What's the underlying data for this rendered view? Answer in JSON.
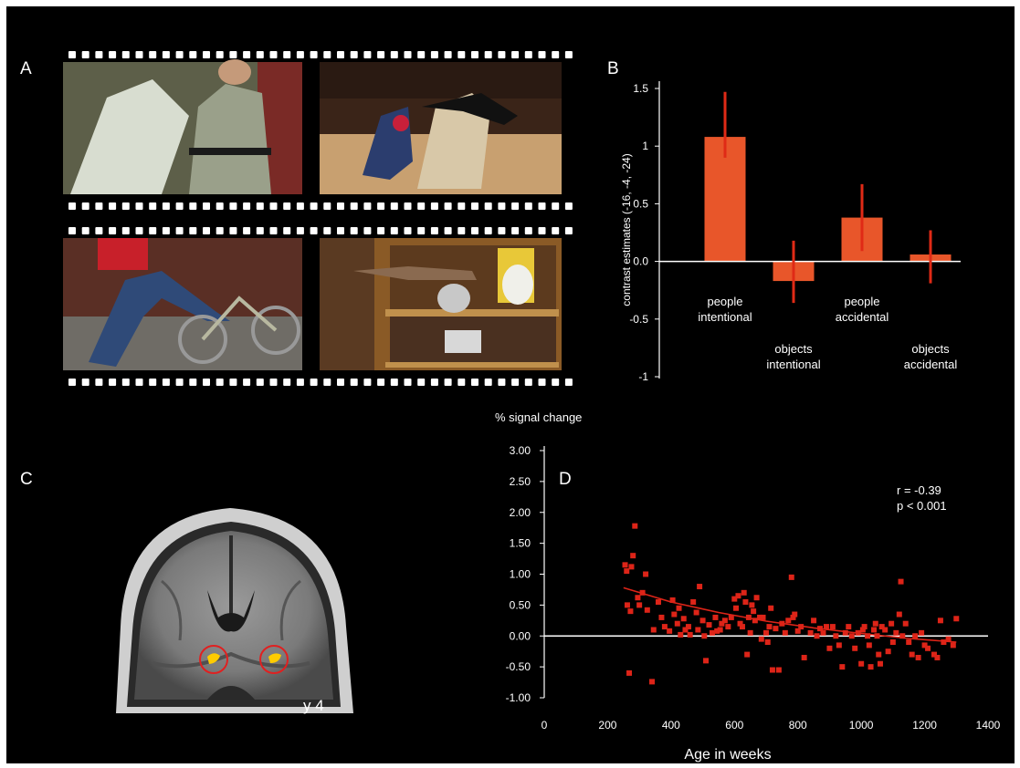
{
  "panels": {
    "a": {
      "label": "A"
    },
    "b": {
      "label": "B"
    },
    "c": {
      "label": "C",
      "slice_label": "y 4"
    },
    "d": {
      "label": "D"
    }
  },
  "colors": {
    "accent": "#e03a1e",
    "bar_fill": "#e8562a",
    "error_bar": "#e02a16",
    "scatter": "#dd2418",
    "background": "#000000",
    "activation": "#ffcc00"
  },
  "chart_data": [
    {
      "type": "bar",
      "panel": "B",
      "ylabel": "contrast estimates (-16, -4, -24)",
      "ylim": [
        -1,
        1.5
      ],
      "yticks": [
        "1.5",
        "1",
        "0.5",
        "0.0",
        "-0.5",
        "-1"
      ],
      "categories": [
        "people intentional",
        "objects intentional",
        "people accidental",
        "objects accidental"
      ],
      "category_lines": [
        [
          "people",
          "intentional"
        ],
        [
          "objects",
          "intentional"
        ],
        [
          "people",
          "accidental"
        ],
        [
          "objects",
          "accidental"
        ]
      ],
      "values": [
        1.08,
        -0.17,
        0.38,
        0.06
      ],
      "error_low": [
        0.9,
        -0.36,
        0.09,
        -0.19
      ],
      "error_high": [
        1.47,
        0.18,
        0.67,
        0.27
      ]
    },
    {
      "type": "scatter",
      "panel": "D",
      "ylabel": "% signal change",
      "xlabel": "Age in weeks",
      "xlim": [
        0,
        1400
      ],
      "ylim": [
        -1,
        3
      ],
      "xticks": [
        "0",
        "200",
        "400",
        "600",
        "800",
        "1000",
        "1200",
        "1400"
      ],
      "yticks": [
        "3.00",
        "2.50",
        "2.00",
        "1.50",
        "1.00",
        "0.50",
        "0.00",
        "-0.50",
        "-1.00"
      ],
      "annotation": [
        "r = -0.39",
        "p < 0.001"
      ],
      "fit_curve": {
        "x": [
          250,
          400,
          550,
          700,
          850,
          1000,
          1150,
          1300
        ],
        "y": [
          0.78,
          0.55,
          0.38,
          0.24,
          0.13,
          0.04,
          -0.04,
          -0.1
        ]
      },
      "points": [
        [
          255,
          1.15
        ],
        [
          260,
          1.05
        ],
        [
          262,
          0.5
        ],
        [
          268,
          -0.6
        ],
        [
          272,
          0.4
        ],
        [
          275,
          1.12
        ],
        [
          280,
          1.3
        ],
        [
          286,
          1.78
        ],
        [
          295,
          0.62
        ],
        [
          300,
          0.5
        ],
        [
          310,
          0.7
        ],
        [
          320,
          1.0
        ],
        [
          325,
          0.42
        ],
        [
          340,
          -0.74
        ],
        [
          345,
          0.1
        ],
        [
          360,
          0.55
        ],
        [
          370,
          0.3
        ],
        [
          380,
          0.15
        ],
        [
          395,
          0.08
        ],
        [
          405,
          0.58
        ],
        [
          410,
          0.35
        ],
        [
          420,
          0.2
        ],
        [
          425,
          0.45
        ],
        [
          430,
          0.02
        ],
        [
          440,
          0.28
        ],
        [
          445,
          0.1
        ],
        [
          455,
          0.15
        ],
        [
          460,
          0.02
        ],
        [
          470,
          0.55
        ],
        [
          480,
          0.38
        ],
        [
          485,
          0.1
        ],
        [
          490,
          0.8
        ],
        [
          500,
          0.25
        ],
        [
          505,
          0.0
        ],
        [
          510,
          -0.4
        ],
        [
          520,
          0.18
        ],
        [
          530,
          0.05
        ],
        [
          540,
          0.3
        ],
        [
          545,
          0.08
        ],
        [
          555,
          0.1
        ],
        [
          560,
          0.2
        ],
        [
          570,
          0.25
        ],
        [
          580,
          0.15
        ],
        [
          590,
          0.3
        ],
        [
          600,
          0.6
        ],
        [
          605,
          0.45
        ],
        [
          612,
          0.65
        ],
        [
          618,
          0.2
        ],
        [
          625,
          0.15
        ],
        [
          630,
          0.7
        ],
        [
          635,
          0.55
        ],
        [
          640,
          -0.3
        ],
        [
          645,
          0.3
        ],
        [
          650,
          0.05
        ],
        [
          655,
          0.5
        ],
        [
          660,
          0.4
        ],
        [
          665,
          0.25
        ],
        [
          670,
          0.62
        ],
        [
          680,
          0.3
        ],
        [
          685,
          -0.05
        ],
        [
          690,
          0.3
        ],
        [
          700,
          0.05
        ],
        [
          705,
          -0.1
        ],
        [
          710,
          0.15
        ],
        [
          715,
          0.45
        ],
        [
          720,
          -0.55
        ],
        [
          730,
          0.12
        ],
        [
          740,
          -0.55
        ],
        [
          750,
          0.2
        ],
        [
          760,
          0.05
        ],
        [
          770,
          0.25
        ],
        [
          780,
          0.95
        ],
        [
          785,
          0.3
        ],
        [
          790,
          0.35
        ],
        [
          800,
          0.08
        ],
        [
          810,
          0.15
        ],
        [
          820,
          -0.35
        ],
        [
          840,
          0.05
        ],
        [
          850,
          0.25
        ],
        [
          860,
          0.0
        ],
        [
          870,
          0.12
        ],
        [
          880,
          0.05
        ],
        [
          890,
          0.15
        ],
        [
          900,
          -0.2
        ],
        [
          910,
          0.15
        ],
        [
          920,
          0.0
        ],
        [
          930,
          -0.15
        ],
        [
          940,
          -0.5
        ],
        [
          950,
          0.05
        ],
        [
          960,
          0.15
        ],
        [
          970,
          0.0
        ],
        [
          980,
          -0.2
        ],
        [
          990,
          0.05
        ],
        [
          1000,
          -0.45
        ],
        [
          1005,
          0.1
        ],
        [
          1010,
          0.15
        ],
        [
          1020,
          0.0
        ],
        [
          1025,
          -0.15
        ],
        [
          1030,
          -0.5
        ],
        [
          1040,
          0.1
        ],
        [
          1045,
          0.2
        ],
        [
          1050,
          0.0
        ],
        [
          1055,
          -0.3
        ],
        [
          1060,
          -0.45
        ],
        [
          1065,
          0.15
        ],
        [
          1075,
          0.1
        ],
        [
          1085,
          -0.25
        ],
        [
          1095,
          0.2
        ],
        [
          1100,
          -0.1
        ],
        [
          1110,
          0.05
        ],
        [
          1120,
          0.35
        ],
        [
          1125,
          0.88
        ],
        [
          1130,
          0.0
        ],
        [
          1140,
          0.2
        ],
        [
          1150,
          -0.1
        ],
        [
          1160,
          -0.3
        ],
        [
          1170,
          0.0
        ],
        [
          1180,
          -0.35
        ],
        [
          1190,
          0.05
        ],
        [
          1200,
          -0.15
        ],
        [
          1210,
          -0.2
        ],
        [
          1230,
          -0.3
        ],
        [
          1240,
          -0.35
        ],
        [
          1250,
          0.25
        ],
        [
          1260,
          -0.1
        ],
        [
          1275,
          -0.05
        ],
        [
          1290,
          -0.15
        ],
        [
          1300,
          0.28
        ]
      ]
    }
  ]
}
